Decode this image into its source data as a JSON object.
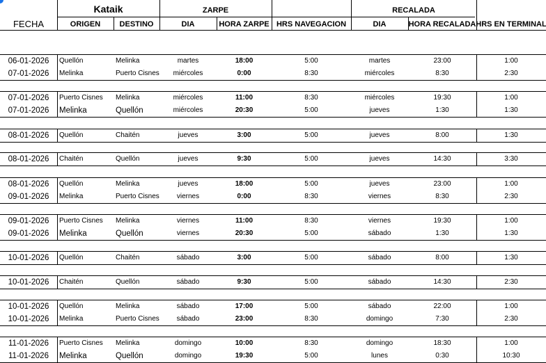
{
  "header": {
    "vessel": "Kataik",
    "fecha": "FECHA",
    "origen": "ORIGEN",
    "destino": "DESTINO",
    "zarpe": "ZARPE",
    "zarpe_dia": "DIA",
    "hora_zarpe": "HORA ZARPE",
    "hrs_navegacion": "HRS NAVEGACION",
    "recalada": "RECALADA",
    "recalada_dia": "DIA",
    "hora_recalada": "HORA RECALADA",
    "hrs_terminal": "HRS EN TERMINAL"
  },
  "groups": [
    [
      [
        "06-01-2026",
        "Quellón",
        "Melinka",
        "martes",
        "18:00",
        "5:00",
        "martes",
        "23:00",
        "1:00"
      ],
      [
        "07-01-2026",
        "Melinka",
        "Puerto Cisnes",
        "miércoles",
        "0:00",
        "8:30",
        "miércoles",
        "8:30",
        "2:30"
      ]
    ],
    [
      [
        "07-01-2026",
        "Puerto Cisnes",
        "Melinka",
        "miércoles",
        "11:00",
        "8:30",
        "miércoles",
        "19:30",
        "1:00"
      ],
      [
        "07-01-2026",
        "Melinka",
        "Quellón",
        "miércoles",
        "20:30",
        "5:00",
        "jueves",
        "1:30",
        "1:30"
      ]
    ],
    [
      [
        "08-01-2026",
        "Quellón",
        "Chaitén",
        "jueves",
        "3:00",
        "5:00",
        "jueves",
        "8:00",
        "1:30"
      ]
    ],
    [
      [
        "08-01-2026",
        "Chaitén",
        "Quellón",
        "jueves",
        "9:30",
        "5:00",
        "jueves",
        "14:30",
        "3:30"
      ]
    ],
    [
      [
        "08-01-2026",
        "Quellón",
        "Melinka",
        "jueves",
        "18:00",
        "5:00",
        "jueves",
        "23:00",
        "1:00"
      ],
      [
        "09-01-2026",
        "Melinka",
        "Puerto Cisnes",
        "viernes",
        "0:00",
        "8:30",
        "viernes",
        "8:30",
        "2:30"
      ]
    ],
    [
      [
        "09-01-2026",
        "Puerto Cisnes",
        "Melinka",
        "viernes",
        "11:00",
        "8:30",
        "viernes",
        "19:30",
        "1:00"
      ],
      [
        "09-01-2026",
        "Melinka",
        "Quellón",
        "viernes",
        "20:30",
        "5:00",
        "sábado",
        "1:30",
        "1:30"
      ]
    ],
    [
      [
        "10-01-2026",
        "Quellón",
        "Chaitén",
        "sábado",
        "3:00",
        "5:00",
        "sábado",
        "8:00",
        "1:30"
      ]
    ],
    [
      [
        "10-01-2026",
        "Chaitén",
        "Quellón",
        "sábado",
        "9:30",
        "5:00",
        "sábado",
        "14:30",
        "2:30"
      ]
    ],
    [
      [
        "10-01-2026",
        "Quellón",
        "Melinka",
        "sábado",
        "17:00",
        "5:00",
        "sábado",
        "22:00",
        "1:00"
      ],
      [
        "10-01-2026",
        "Melinka",
        "Puerto Cisnes",
        "sábado",
        "23:00",
        "8:30",
        "domingo",
        "7:30",
        "2:30"
      ]
    ],
    [
      [
        "11-01-2026",
        "Puerto Cisnes",
        "Melinka",
        "domingo",
        "10:00",
        "8:30",
        "domingo",
        "18:30",
        "1:00"
      ],
      [
        "11-01-2026",
        "Melinka",
        "Quellón",
        "domingo",
        "19:30",
        "5:00",
        "lunes",
        "0:30",
        "10:30"
      ]
    ]
  ]
}
